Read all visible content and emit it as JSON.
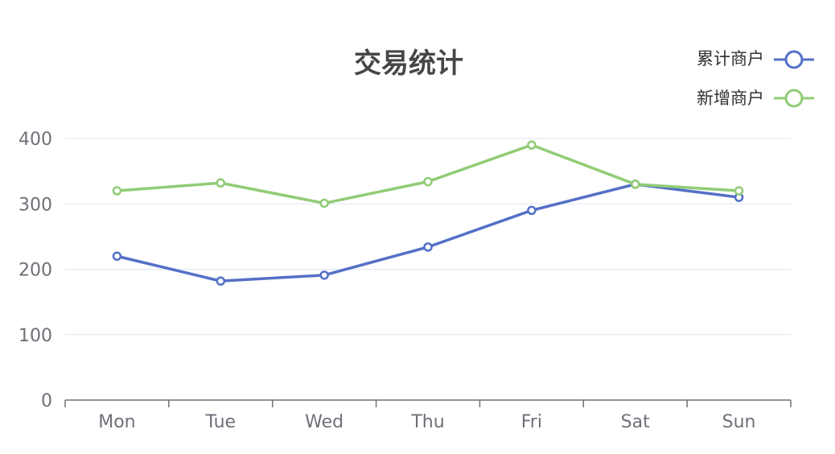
{
  "chart_data": {
    "type": "line",
    "title": "交易统计",
    "categories": [
      "Mon",
      "Tue",
      "Wed",
      "Thu",
      "Fri",
      "Sat",
      "Sun"
    ],
    "series": [
      {
        "name": "累计商户",
        "color": "#5470c6",
        "values": [
          220,
          182,
          191,
          234,
          290,
          330,
          310
        ]
      },
      {
        "name": "新增商户",
        "color": "#91cc75",
        "values": [
          320,
          332,
          301,
          334,
          390,
          330,
          320
        ]
      }
    ],
    "y_ticks": [
      "0",
      "100",
      "200",
      "300",
      "400"
    ],
    "ylim": [
      0,
      400
    ],
    "grid": true,
    "legend_position": "top-right",
    "marker": "empty-circle"
  }
}
